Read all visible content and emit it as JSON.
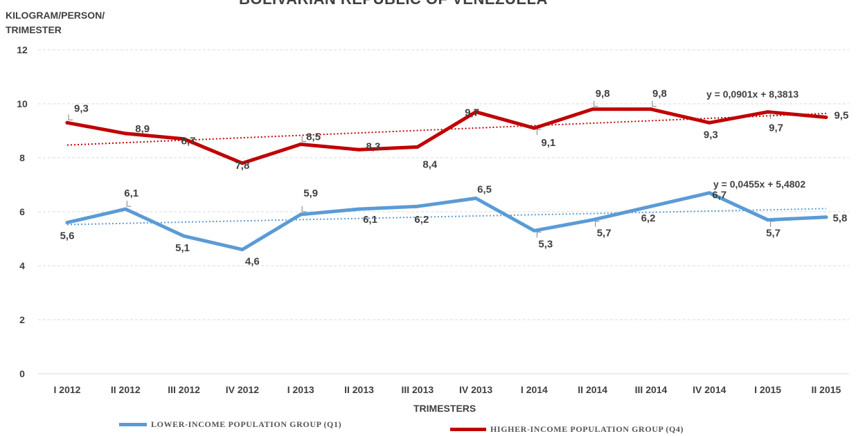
{
  "title": "BOLIVARIAN REPUBLIC OF VENEZUELA",
  "ylabel": "KILOGRAM/PERSON/ TRIMESTER",
  "xlabel": "TRIMESTERS",
  "legend": [
    {
      "label": "LOWER-INCOME POPULATION GROUP (Q1)",
      "color": "#5b9bd5"
    },
    {
      "label": "HIGHER-INCOME POPULATION GROUP (Q4)",
      "color": "#c00000"
    }
  ],
  "chart_data": {
    "type": "line",
    "categories": [
      "I 2012",
      "II 2012",
      "III 2012",
      "IV 2012",
      "I 2013",
      "II 2013",
      "III 2013",
      "IV 2013",
      "I 2014",
      "II 2014",
      "III 2014",
      "IV 2014",
      "I 2015",
      "II 2015"
    ],
    "yticks": [
      0,
      2,
      4,
      6,
      8,
      10,
      12
    ],
    "ylim": [
      0,
      12
    ],
    "grid": true,
    "legend_position": "bottom",
    "series": [
      {
        "name": "LOWER-INCOME POPULATION GROUP (Q1)",
        "color": "#5b9bd5",
        "values": [
          5.6,
          6.1,
          5.1,
          4.6,
          5.9,
          6.1,
          6.2,
          6.5,
          5.3,
          5.7,
          6.2,
          6.7,
          5.7,
          5.8
        ],
        "labels": [
          "5,6",
          "6,1",
          "5,1",
          "4,6",
          "5,9",
          "6,1",
          "6,2",
          "6,5",
          "5,3",
          "5,7",
          "6,2",
          "6,7",
          "5,7",
          "5,8"
        ],
        "trendline": {
          "slope": 0.0455,
          "intercept": 5.4802,
          "equation": "y = 0,0455x + 5,4802"
        }
      },
      {
        "name": "HIGHER-INCOME POPULATION GROUP (Q4)",
        "color": "#c00000",
        "values": [
          9.3,
          8.9,
          8.7,
          7.8,
          8.5,
          8.3,
          8.4,
          9.7,
          9.1,
          9.8,
          9.8,
          9.3,
          9.7,
          9.5
        ],
        "labels": [
          "9,3",
          "8,9",
          "8,7",
          "7,8",
          "8,5",
          "8,3",
          "8,4",
          "9,7",
          "9,1",
          "9,8",
          "9,8",
          "9,3",
          "9,7",
          "9,5"
        ],
        "trendline": {
          "slope": 0.0901,
          "intercept": 8.3813,
          "equation": "y = 0,0901x + 8,3813"
        }
      }
    ]
  }
}
